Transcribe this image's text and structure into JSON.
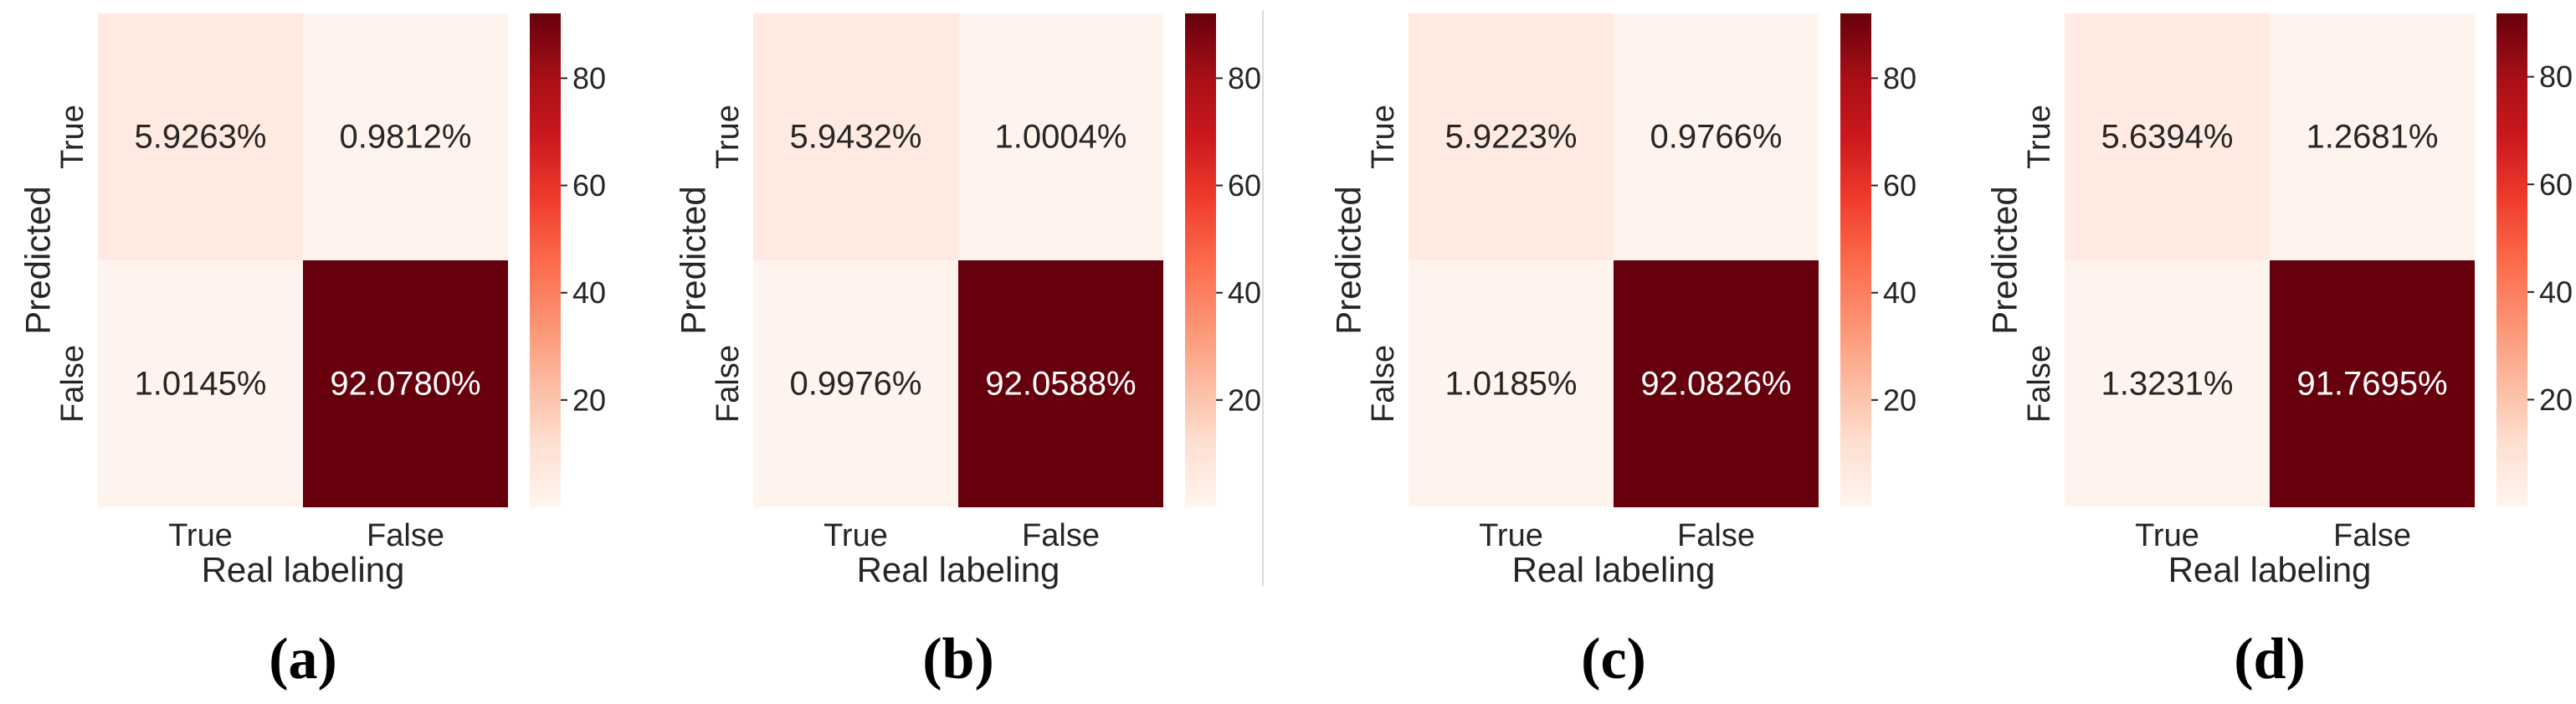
{
  "chart_data": [
    {
      "type": "heatmap",
      "panel_label": "(a)",
      "xlabel": "Real labeling",
      "ylabel": "Predicted",
      "x_tick_labels": [
        "True",
        "False"
      ],
      "y_tick_labels": [
        "True",
        "False"
      ],
      "matrix": [
        [
          5.9263,
          0.9812
        ],
        [
          1.0145,
          92.078
        ]
      ],
      "cell_labels": [
        [
          "5.9263%",
          "0.9812%"
        ],
        [
          "1.0145%",
          "92.0780%"
        ]
      ],
      "colorbar": {
        "min": 0,
        "max": 92.08,
        "ticks": [
          20,
          40,
          60,
          80
        ],
        "tick_labels": [
          "20",
          "40",
          "60",
          "80"
        ],
        "colormap": "Reds"
      }
    },
    {
      "type": "heatmap",
      "panel_label": "(b)",
      "xlabel": "Real labeling",
      "ylabel": "Predicted",
      "x_tick_labels": [
        "True",
        "False"
      ],
      "y_tick_labels": [
        "True",
        "False"
      ],
      "matrix": [
        [
          5.9432,
          1.0004
        ],
        [
          0.9976,
          92.0588
        ]
      ],
      "cell_labels": [
        [
          "5.9432%",
          "1.0004%"
        ],
        [
          "0.9976%",
          "92.0588%"
        ]
      ],
      "colorbar": {
        "min": 0,
        "max": 92.08,
        "ticks": [
          20,
          40,
          60,
          80
        ],
        "tick_labels": [
          "20",
          "40",
          "60",
          "80"
        ],
        "colormap": "Reds"
      }
    },
    {
      "type": "heatmap",
      "panel_label": "(c)",
      "xlabel": "Real labeling",
      "ylabel": "Predicted",
      "x_tick_labels": [
        "True",
        "False"
      ],
      "y_tick_labels": [
        "True",
        "False"
      ],
      "matrix": [
        [
          5.9223,
          0.9766
        ],
        [
          1.0185,
          92.0826
        ]
      ],
      "cell_labels": [
        [
          "5.9223%",
          "0.9766%"
        ],
        [
          "1.0185%",
          "92.0826%"
        ]
      ],
      "colorbar": {
        "min": 0,
        "max": 92.08,
        "ticks": [
          20,
          40,
          60,
          80
        ],
        "tick_labels": [
          "20",
          "40",
          "60",
          "80"
        ],
        "colormap": "Reds"
      }
    },
    {
      "type": "heatmap",
      "panel_label": "(d)",
      "xlabel": "Real labeling",
      "ylabel": "Predicted",
      "x_tick_labels": [
        "True",
        "False"
      ],
      "y_tick_labels": [
        "True",
        "False"
      ],
      "matrix": [
        [
          5.6394,
          1.2681
        ],
        [
          1.3231,
          91.7695
        ]
      ],
      "cell_labels": [
        [
          "5.6394%",
          "1.2681%"
        ],
        [
          "1.3231%",
          "91.7695%"
        ]
      ],
      "colorbar": {
        "min": 0,
        "max": 91.77,
        "ticks": [
          20,
          40,
          60,
          80
        ],
        "tick_labels": [
          "20",
          "40",
          "60",
          "80"
        ],
        "colormap": "Reds"
      }
    }
  ]
}
